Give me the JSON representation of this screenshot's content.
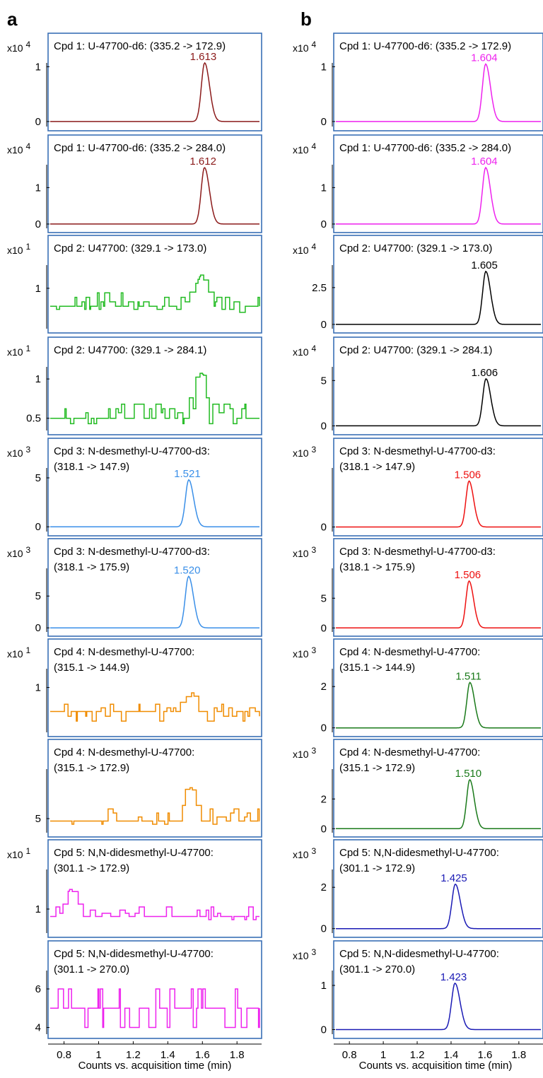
{
  "panel_labels": [
    "a",
    "b"
  ],
  "xlabel": "Counts vs. acquisition time (min)",
  "x_ticks": [
    "0.8",
    "1",
    "1.2",
    "1.4",
    "1.6",
    "1.8"
  ],
  "x_range": [
    0.72,
    1.93
  ],
  "colors": {
    "frame": "#3a6fb5",
    "axis": "#000000",
    "brown": "#8b1a1a",
    "green": "#22bb22",
    "blue": "#3a8fe8",
    "orange": "#f08c00",
    "magenta": "#ee22ee",
    "black": "#000000",
    "red": "#ee1111",
    "darkgreen": "#1a7a1a",
    "navy": "#1a1ab5"
  },
  "chart_data": [
    {
      "type": "line",
      "id": "a1",
      "column": "a",
      "color_key": "brown",
      "scale": "x10 4",
      "title_lines": [
        "Cpd 1: U-47700-d6: (335.2 -> 172.9)"
      ],
      "y_ticks": [
        {
          "label": "1",
          "v": 1
        },
        {
          "label": "0",
          "v": 0
        }
      ],
      "ylim": [
        -0.04,
        1.25
      ],
      "baseline": 0,
      "peak": {
        "label": "1.613",
        "rt": 1.613,
        "height": 1.07,
        "sigma": 0.019
      },
      "noise": null
    },
    {
      "type": "line",
      "id": "a2",
      "column": "a",
      "color_key": "brown",
      "scale": "x10 4",
      "title_lines": [
        "Cpd 1: U-47700-d6: (335.2 -> 284.0)"
      ],
      "y_ticks": [
        {
          "label": "1",
          "v": 1
        },
        {
          "label": "0",
          "v": 0
        }
      ],
      "ylim": [
        -0.04,
        1.9
      ],
      "baseline": 0,
      "peak": {
        "label": "1.612",
        "rt": 1.612,
        "height": 1.55,
        "sigma": 0.019
      },
      "noise": null
    },
    {
      "type": "line",
      "id": "a3",
      "column": "a",
      "color_key": "green",
      "scale": "x10 1",
      "title_lines": [
        "Cpd 2: U47700: (329.1 -> 173.0)"
      ],
      "y_ticks": [
        {
          "label": "1",
          "v": 1
        }
      ],
      "ylim": [
        0.75,
        1.22
      ],
      "baseline": 0.88,
      "peak": null,
      "noise": {
        "levels": [
          0.84,
          0.86,
          0.88,
          0.91,
          0.94,
          0.97
        ],
        "bump_rt": 1.59,
        "bump_height": 1.09,
        "seed": 3
      }
    },
    {
      "type": "line",
      "id": "a4",
      "column": "a",
      "color_key": "green",
      "scale": "x10 1",
      "title_lines": [
        "Cpd 2: U47700: (329.1 -> 284.1)"
      ],
      "y_ticks": [
        {
          "label": "1",
          "v": 1
        },
        {
          "label": "0.5",
          "v": 0.5
        }
      ],
      "ylim": [
        0.38,
        1.28
      ],
      "baseline": 0.5,
      "peak": null,
      "noise": {
        "levels": [
          0.43,
          0.5,
          0.57,
          0.62,
          0.68
        ],
        "bump_rt": 1.59,
        "bump_height": 1.08,
        "seed": 7
      }
    },
    {
      "type": "line",
      "id": "a5",
      "column": "a",
      "color_key": "blue",
      "scale": "x10 3",
      "title_lines": [
        "Cpd 3: N-desmethyl-U-47700-d3:",
        "(318.1 -> 147.9)"
      ],
      "y_ticks": [
        {
          "label": "5",
          "v": 5
        },
        {
          "label": "0",
          "v": 0
        }
      ],
      "ylim": [
        -0.2,
        6.3
      ],
      "baseline": 0,
      "peak": {
        "label": "1.521",
        "rt": 1.521,
        "height": 4.8,
        "sigma": 0.019
      },
      "noise": null
    },
    {
      "type": "line",
      "id": "a6",
      "column": "a",
      "color_key": "blue",
      "scale": "x10 3",
      "title_lines": [
        "Cpd 3: N-desmethyl-U-47700-d3:",
        "(318.1 -> 175.9)"
      ],
      "y_ticks": [
        {
          "label": "5",
          "v": 5
        },
        {
          "label": "0",
          "v": 0
        }
      ],
      "ylim": [
        -0.2,
        9.8
      ],
      "baseline": 0,
      "peak": {
        "label": "1.520",
        "rt": 1.52,
        "height": 8.1,
        "sigma": 0.019
      },
      "noise": null
    },
    {
      "type": "line",
      "id": "a7",
      "column": "a",
      "color_key": "orange",
      "scale": "x10 1",
      "title_lines": [
        "Cpd 4: N-desmethyl-U-47700:",
        "(315.1 -> 144.9)"
      ],
      "y_ticks": [
        {
          "label": "1",
          "v": 1
        }
      ],
      "ylim": [
        0.65,
        1.18
      ],
      "baseline": 0.8,
      "peak": null,
      "noise": {
        "levels": [
          0.72,
          0.76,
          0.8,
          0.83,
          0.86
        ],
        "bump_rt": 1.53,
        "bump_height": 0.97,
        "seed": 11
      }
    },
    {
      "type": "line",
      "id": "a8",
      "column": "a",
      "color_key": "orange",
      "scale": "",
      "title_lines": [
        "Cpd 4: N-desmethyl-U-47700:",
        "(315.1 -> 172.9)"
      ],
      "y_ticks": [
        {
          "label": "5",
          "v": 5
        }
      ],
      "ylim": [
        4.86,
        5.65
      ],
      "baseline": 4.97,
      "peak": null,
      "noise": {
        "levels": [
          4.93,
          4.97,
          5.02,
          5.07,
          5.12
        ],
        "bump_rt": 1.52,
        "bump_height": 5.4,
        "seed": 17
      }
    },
    {
      "type": "line",
      "id": "a9",
      "column": "a",
      "color_key": "magenta",
      "scale": "x10 1",
      "title_lines": [
        "Cpd 5: N,N-didesmethyl-U-47700:",
        "(301.1 -> 172.9)"
      ],
      "y_ticks": [
        {
          "label": "1",
          "v": 1
        }
      ],
      "ylim": [
        0.8,
        1.4
      ],
      "baseline": 0.93,
      "peak": null,
      "noise": {
        "levels": [
          0.9,
          0.93,
          0.96,
          0.99,
          1.02
        ],
        "bump_rt": 0.835,
        "bump_height": 1.19,
        "seed": 23
      }
    },
    {
      "type": "line",
      "id": "a10",
      "column": "a",
      "color_key": "magenta",
      "scale": "",
      "title_lines": [
        "Cpd 5: N,N-didesmethyl-U-47700:",
        "(301.1 -> 270.0)"
      ],
      "y_ticks": [
        {
          "label": "6",
          "v": 6
        },
        {
          "label": "4",
          "v": 4
        }
      ],
      "ylim": [
        3.8,
        7.1
      ],
      "baseline": 5,
      "peak": null,
      "noise": {
        "levels": [
          4,
          5,
          6
        ],
        "bump_rt": null,
        "bump_height": null,
        "seed": 29
      }
    },
    {
      "type": "line",
      "id": "b1",
      "column": "b",
      "color_key": "magenta",
      "scale": "x10 4",
      "title_lines": [
        "Cpd 1: U-47700-d6: (335.2 -> 172.9)"
      ],
      "y_ticks": [
        {
          "label": "1",
          "v": 1
        },
        {
          "label": "0",
          "v": 0
        }
      ],
      "ylim": [
        -0.04,
        1.25
      ],
      "baseline": 0,
      "peak": {
        "label": "1.604",
        "rt": 1.604,
        "height": 1.05,
        "sigma": 0.019
      },
      "noise": null
    },
    {
      "type": "line",
      "id": "b2",
      "column": "b",
      "color_key": "magenta",
      "scale": "x10 4",
      "title_lines": [
        "Cpd 1: U-47700-d6: (335.2 -> 284.0)"
      ],
      "y_ticks": [
        {
          "label": "1",
          "v": 1
        },
        {
          "label": "0",
          "v": 0
        }
      ],
      "ylim": [
        -0.04,
        1.9
      ],
      "baseline": 0,
      "peak": {
        "label": "1.604",
        "rt": 1.604,
        "height": 1.55,
        "sigma": 0.019
      },
      "noise": null
    },
    {
      "type": "line",
      "id": "b3",
      "column": "b",
      "color_key": "black",
      "scale": "x10 4",
      "title_lines": [
        "Cpd 2: U47700: (329.1 -> 173.0)"
      ],
      "y_ticks": [
        {
          "label": "2.5",
          "v": 2.5
        },
        {
          "label": "0",
          "v": 0
        }
      ],
      "ylim": [
        -0.1,
        4.7
      ],
      "baseline": 0,
      "peak": {
        "label": "1.605",
        "rt": 1.605,
        "height": 3.6,
        "sigma": 0.019
      },
      "noise": null
    },
    {
      "type": "line",
      "id": "b4",
      "column": "b",
      "color_key": "black",
      "scale": "x10 4",
      "title_lines": [
        "Cpd 2: U47700: (329.1 -> 284.1)"
      ],
      "y_ticks": [
        {
          "label": "5",
          "v": 5
        },
        {
          "label": "0",
          "v": 0
        }
      ],
      "ylim": [
        -0.2,
        7.6
      ],
      "baseline": 0,
      "peak": {
        "label": "1.606",
        "rt": 1.606,
        "height": 5.2,
        "sigma": 0.019
      },
      "noise": null
    },
    {
      "type": "line",
      "id": "b5",
      "column": "b",
      "color_key": "red",
      "scale": "x10 3",
      "title_lines": [
        "Cpd 3: N-desmethyl-U-47700-d3:",
        "(318.1 -> 147.9)"
      ],
      "y_ticks": [
        {
          "label": "0",
          "v": 0
        }
      ],
      "ylim": [
        -0.3,
        10.5
      ],
      "baseline": 0,
      "peak": {
        "label": "1.506",
        "rt": 1.506,
        "height": 7.8,
        "sigma": 0.018
      },
      "noise": null
    },
    {
      "type": "line",
      "id": "b6",
      "column": "b",
      "color_key": "red",
      "scale": "x10 3",
      "title_lines": [
        "Cpd 3: N-desmethyl-U-47700-d3:",
        "(318.1 -> 175.9)"
      ],
      "y_ticks": [
        {
          "label": "5",
          "v": 5
        },
        {
          "label": "0",
          "v": 0
        }
      ],
      "ylim": [
        -0.2,
        10.5
      ],
      "baseline": 0,
      "peak": {
        "label": "1.506",
        "rt": 1.506,
        "height": 7.9,
        "sigma": 0.018
      },
      "noise": null
    },
    {
      "type": "line",
      "id": "b7",
      "column": "b",
      "color_key": "darkgreen",
      "scale": "x10 3",
      "title_lines": [
        "Cpd 4: N-desmethyl-U-47700:",
        "(315.1 -> 144.9)"
      ],
      "y_ticks": [
        {
          "label": "2",
          "v": 2
        },
        {
          "label": "0",
          "v": 0
        }
      ],
      "ylim": [
        -0.08,
        3.0
      ],
      "baseline": 0,
      "peak": {
        "label": "1.511",
        "rt": 1.511,
        "height": 2.2,
        "sigma": 0.018
      },
      "noise": null
    },
    {
      "type": "line",
      "id": "b8",
      "column": "b",
      "color_key": "darkgreen",
      "scale": "x10 3",
      "title_lines": [
        "Cpd 4: N-desmethyl-U-47700:",
        "(315.1 -> 172.9)"
      ],
      "y_ticks": [
        {
          "label": "2",
          "v": 2
        },
        {
          "label": "0",
          "v": 0
        }
      ],
      "ylim": [
        -0.08,
        4.2
      ],
      "baseline": 0,
      "peak": {
        "label": "1.510",
        "rt": 1.51,
        "height": 3.3,
        "sigma": 0.018
      },
      "noise": null
    },
    {
      "type": "line",
      "id": "b9",
      "column": "b",
      "color_key": "navy",
      "scale": "x10 3",
      "title_lines": [
        "Cpd 5: N,N-didesmethyl-U-47700:",
        "(301.1 -> 172.9)"
      ],
      "y_ticks": [
        {
          "label": "2",
          "v": 2
        },
        {
          "label": "0",
          "v": 0
        }
      ],
      "ylim": [
        -0.08,
        3.0
      ],
      "baseline": 0,
      "peak": {
        "label": "1.425",
        "rt": 1.425,
        "height": 2.15,
        "sigma": 0.02
      },
      "noise": null
    },
    {
      "type": "line",
      "id": "b10",
      "column": "b",
      "color_key": "navy",
      "scale": "x10 3",
      "title_lines": [
        "Cpd 5: N,N-didesmethyl-U-47700:",
        "(301.1 -> 270.0)"
      ],
      "y_ticks": [
        {
          "label": "1",
          "v": 1
        },
        {
          "label": "0",
          "v": 0
        }
      ],
      "ylim": [
        -0.04,
        1.4
      ],
      "baseline": 0,
      "peak": {
        "label": "1.423",
        "rt": 1.423,
        "height": 1.05,
        "sigma": 0.02
      },
      "noise": null
    }
  ]
}
